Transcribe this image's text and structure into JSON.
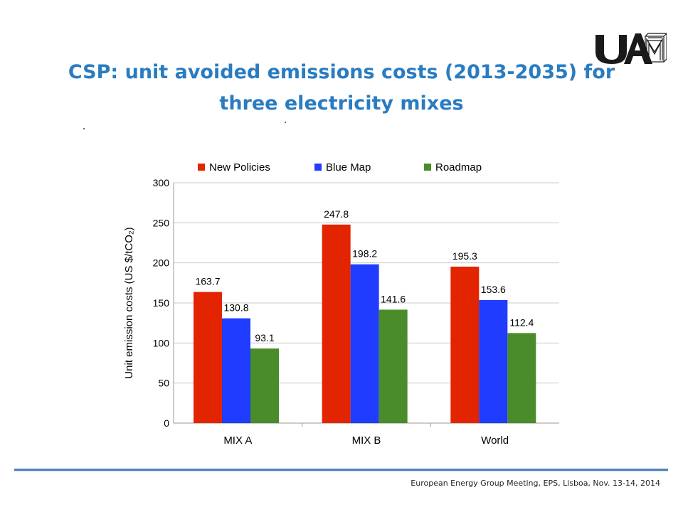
{
  "slide": {
    "title": "CSP: unit avoided emissions costs (2013-2035) for three electricity mixes",
    "footer": "European Energy Group Meeting, EPS, Lisboa, Nov. 13-14, 2014",
    "logo_text": "UAM",
    "accent_color": "#2a7cc1"
  },
  "chart_data": {
    "type": "bar",
    "categories": [
      "MIX A",
      "MIX B",
      "World"
    ],
    "series": [
      {
        "name": "New Policies",
        "color": "#e32400",
        "values": [
          163.7,
          247.8,
          195.3
        ]
      },
      {
        "name": "Blue Map",
        "color": "#1f3cff",
        "values": [
          130.8,
          198.2,
          153.6
        ]
      },
      {
        "name": "Roadmap",
        "color": "#4a8c2a",
        "values": [
          93.1,
          141.6,
          112.4
        ]
      }
    ],
    "data_labels": [
      "163.7",
      "130.8",
      "93.1",
      "247.8",
      "198.2",
      "141.6",
      "195.3",
      "153.6",
      "112.4"
    ],
    "ylabel": "Unit emission costs (US $/tCO₂)",
    "ylim": [
      0,
      300
    ],
    "yticks": [
      "0",
      "50",
      "100",
      "150",
      "200",
      "250",
      "300"
    ],
    "grid": true,
    "legend": "top"
  }
}
